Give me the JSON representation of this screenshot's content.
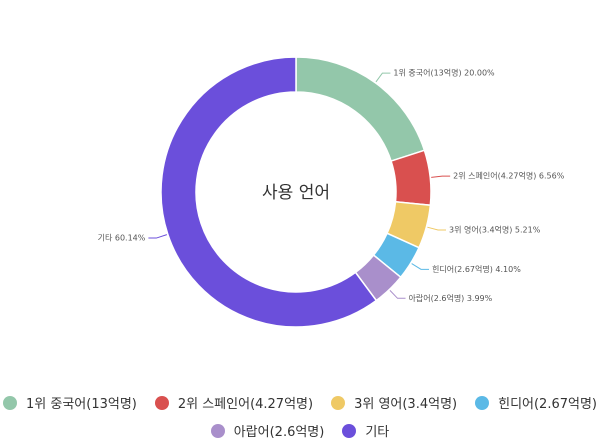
{
  "chart_data": {
    "type": "pie",
    "donut": true,
    "title": "",
    "center_label": "사용 언어",
    "slices": [
      {
        "name": "1위 중국어(13억명)",
        "value": 20.0,
        "label": "1위 중국어(13억명) 20.00%",
        "color": "#93c7aa"
      },
      {
        "name": "2위 스페인어(4.27억명)",
        "value": 6.56,
        "label": "2위 스페인어(4.27억명) 6.56%",
        "color": "#d9504f"
      },
      {
        "name": "3위 영어(3.4억명)",
        "value": 5.21,
        "label": "3위 영어(3.4억명) 5.21%",
        "color": "#efc965"
      },
      {
        "name": "힌디어(2.67억명)",
        "value": 4.1,
        "label": "힌디어(2.67억명) 4.10%",
        "color": "#5bb9e6"
      },
      {
        "name": "아랍어(2.6억명)",
        "value": 3.99,
        "label": "아랍어(2.6억명) 3.99%",
        "color": "#a98fcb"
      },
      {
        "name": "기타",
        "value": 60.14,
        "label": "기타 60.14%",
        "color": "#6b4fdb"
      }
    ],
    "legend_position": "bottom",
    "legend_rows": [
      [
        0,
        1,
        2,
        3
      ],
      [
        4,
        5
      ]
    ]
  }
}
